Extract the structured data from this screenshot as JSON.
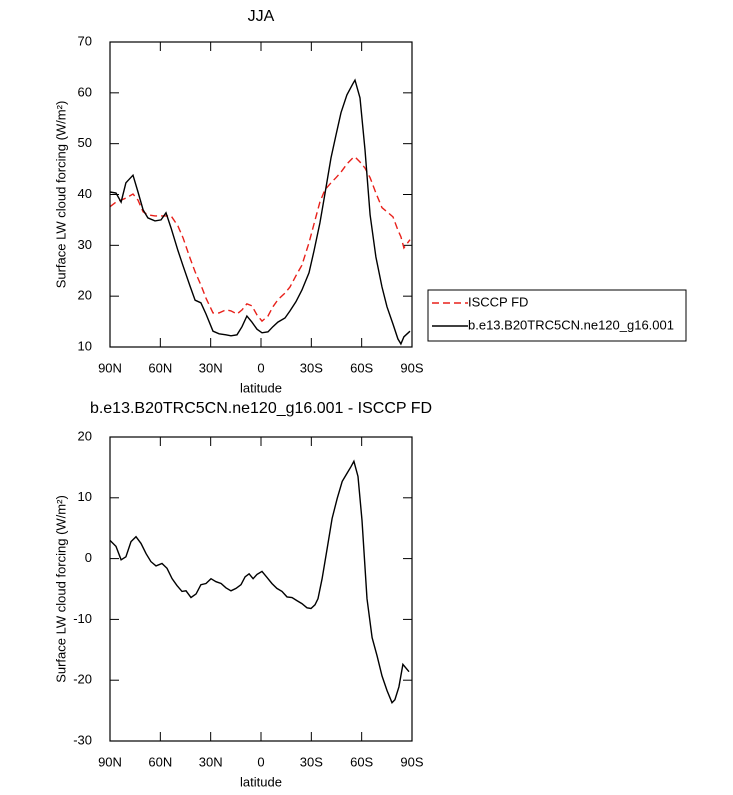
{
  "chart_data": [
    {
      "type": "line",
      "title": "JJA",
      "xlabel": "latitude",
      "ylabel": "Surface LW cloud forcing (W/m²)",
      "x": [
        90,
        86.4,
        83.4,
        80.5,
        76.3,
        73.3,
        70.3,
        67.4,
        63.2,
        59.6,
        56.6,
        53.6,
        49.5,
        46.5,
        42.3,
        39.3,
        35.8,
        32.8,
        28.6,
        25,
        20.9,
        17.9,
        14.3,
        11.3,
        8.4,
        5.4,
        2.4,
        -0.6,
        -4.2,
        -7.1,
        -10.1,
        -14.3,
        -17.3,
        -20.8,
        -24.4,
        -28.6,
        -31.6,
        -35.1,
        -38.1,
        -41.7,
        -44.7,
        -47.7,
        -51.2,
        -54.8,
        -56,
        -59,
        -62,
        -65,
        -68.5,
        -72.1,
        -75.1,
        -78.7,
        -81.6,
        -83.4,
        -85.2,
        -88.8
      ],
      "series": [
        {
          "name": "ISCCP FD",
          "color": "#e8201a",
          "line_style": "dashed",
          "values": [
            37.6,
            38.5,
            38.9,
            39.3,
            40.1,
            38.9,
            36.6,
            36,
            35.8,
            35.8,
            35.8,
            35.8,
            33.8,
            31.5,
            27.5,
            24.8,
            22.2,
            19.6,
            16.7,
            16.7,
            17.3,
            17.1,
            16.5,
            17.3,
            18.5,
            18.1,
            16.3,
            15.1,
            16.1,
            17.9,
            19.3,
            20.6,
            21.8,
            24,
            26.1,
            30.5,
            34.2,
            38.5,
            40.9,
            42.3,
            43.3,
            44.4,
            46,
            47.2,
            47.4,
            46.4,
            45.2,
            43.3,
            40.3,
            37.4,
            36.6,
            35.6,
            33,
            31.7,
            29.5,
            31.1
          ]
        },
        {
          "name": "b.e13.B20TRC5CN.ne120_g16.001",
          "color": "#000000",
          "line_style": "solid",
          "values": [
            40.5,
            40.3,
            38.5,
            42.3,
            43.8,
            40.5,
            37,
            35.4,
            34.8,
            35,
            36.4,
            33.4,
            29,
            26,
            22,
            19.2,
            18.7,
            16.5,
            13.1,
            12.6,
            12.4,
            12.2,
            12.4,
            14,
            16.1,
            14.9,
            13.5,
            12.8,
            13,
            14,
            14.9,
            15.7,
            17.1,
            18.9,
            21.2,
            24.6,
            28.9,
            34.4,
            40.1,
            47.2,
            51.7,
            56.1,
            59.6,
            61.8,
            62.5,
            59,
            48.8,
            36,
            27.7,
            21.8,
            17.9,
            14.5,
            11.6,
            10.6,
            12,
            13.1
          ]
        }
      ],
      "xlim": [
        90,
        -90
      ],
      "xticks": [
        {
          "value": 90,
          "label": "90N"
        },
        {
          "value": 60,
          "label": "60N"
        },
        {
          "value": 30,
          "label": "30N"
        },
        0,
        {
          "value": -30,
          "label": "30S"
        },
        {
          "value": -60,
          "label": "60S"
        },
        {
          "value": -90,
          "label": "90S"
        }
      ],
      "ylim": [
        10,
        70
      ],
      "yticks": [
        10,
        20,
        30,
        40,
        50,
        60,
        70
      ],
      "legend": "right"
    },
    {
      "type": "line",
      "title": "b.e13.B20TRC5CN.ne120_g16.001 - ISCCP FD",
      "xlabel": "latitude",
      "ylabel": "Surface LW cloud forcing (W/m²)",
      "x": [
        90,
        86.4,
        83.4,
        80.5,
        77.5,
        74.5,
        71.5,
        68.5,
        65.6,
        62.6,
        59,
        56,
        53,
        50.1,
        47.1,
        44.7,
        41.7,
        38.7,
        35.8,
        32.8,
        29.8,
        26.8,
        23.8,
        20.9,
        17.9,
        14.9,
        11.9,
        9.5,
        7.1,
        4.7,
        2.4,
        -0.6,
        -3.6,
        -6.5,
        -9.5,
        -12.5,
        -15.5,
        -18.5,
        -21.4,
        -24.4,
        -27.4,
        -29.8,
        -32.2,
        -34,
        -36.4,
        -39.4,
        -42.4,
        -45.4,
        -48.4,
        -51.2,
        -53.6,
        -55.4,
        -57.8,
        -60.2,
        -63.2,
        -66.2,
        -69.2,
        -72.1,
        -75.1,
        -78.1,
        -79.8,
        -82.2,
        -84.6,
        -88.2
      ],
      "values": [
        3,
        2,
        -0.2,
        0.3,
        2.8,
        3.6,
        2.5,
        0.8,
        -0.5,
        -1.2,
        -0.8,
        -1.6,
        -3.3,
        -4.4,
        -5.4,
        -5.3,
        -6.4,
        -5.8,
        -4.3,
        -4.1,
        -3.3,
        -3.8,
        -4.1,
        -4.8,
        -5.3,
        -4.9,
        -4.3,
        -3,
        -2.5,
        -3.3,
        -2.6,
        -2.1,
        -3.1,
        -4.1,
        -4.9,
        -5.4,
        -6.3,
        -6.4,
        -6.9,
        -7.4,
        -8.1,
        -8.2,
        -7.6,
        -6.6,
        -3.3,
        1.6,
        6.6,
        9.9,
        12.7,
        14,
        15.1,
        16,
        13.5,
        6.3,
        -6.6,
        -13,
        -16,
        -19.3,
        -21.7,
        -23.7,
        -23.2,
        -21.1,
        -17.4,
        -18.6
      ],
      "color": "#000000",
      "xlim": [
        90,
        -90
      ],
      "xticks": [
        {
          "value": 90,
          "label": "90N"
        },
        {
          "value": 60,
          "label": "60N"
        },
        {
          "value": 30,
          "label": "30N"
        },
        0,
        {
          "value": -30,
          "label": "30S"
        },
        {
          "value": -60,
          "label": "60S"
        },
        {
          "value": -90,
          "label": "90S"
        }
      ],
      "ylim": [
        -30,
        20
      ],
      "yticks": [
        -30,
        -20,
        -10,
        0,
        10,
        20
      ]
    }
  ]
}
